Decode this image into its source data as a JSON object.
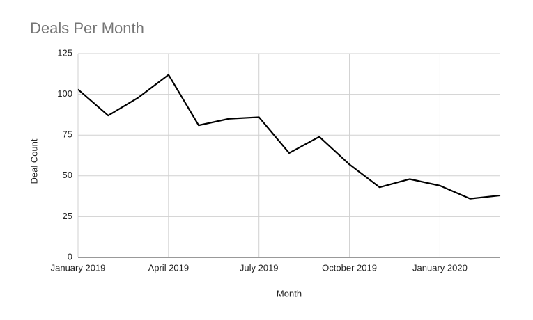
{
  "chart_data": {
    "type": "line",
    "title": "Deals Per Month",
    "x_label": "Month",
    "y_label": "Deal Count",
    "x": [
      "2019-01",
      "2019-02",
      "2019-03",
      "2019-04",
      "2019-05",
      "2019-06",
      "2019-07",
      "2019-08",
      "2019-09",
      "2019-10",
      "2019-11",
      "2019-12",
      "2020-01",
      "2020-02",
      "2020-03"
    ],
    "series": [
      {
        "name": "Deal Count",
        "color": "#000000",
        "values": [
          103,
          87,
          98,
          112,
          81,
          85,
          86,
          64,
          74,
          57,
          43,
          48,
          44,
          36,
          38
        ]
      }
    ],
    "xlim": [
      "2019-01",
      "2020-03"
    ],
    "xticks": [
      {
        "value": "2019-01",
        "label": "January 2019"
      },
      {
        "value": "2019-04",
        "label": "April 2019"
      },
      {
        "value": "2019-07",
        "label": "July 2019"
      },
      {
        "value": "2019-10",
        "label": "October 2019"
      },
      {
        "value": "2020-01",
        "label": "January 2020"
      }
    ],
    "ylim": [
      0,
      125
    ],
    "yticks": [
      0,
      25,
      50,
      75,
      100,
      125
    ],
    "grid": true
  }
}
